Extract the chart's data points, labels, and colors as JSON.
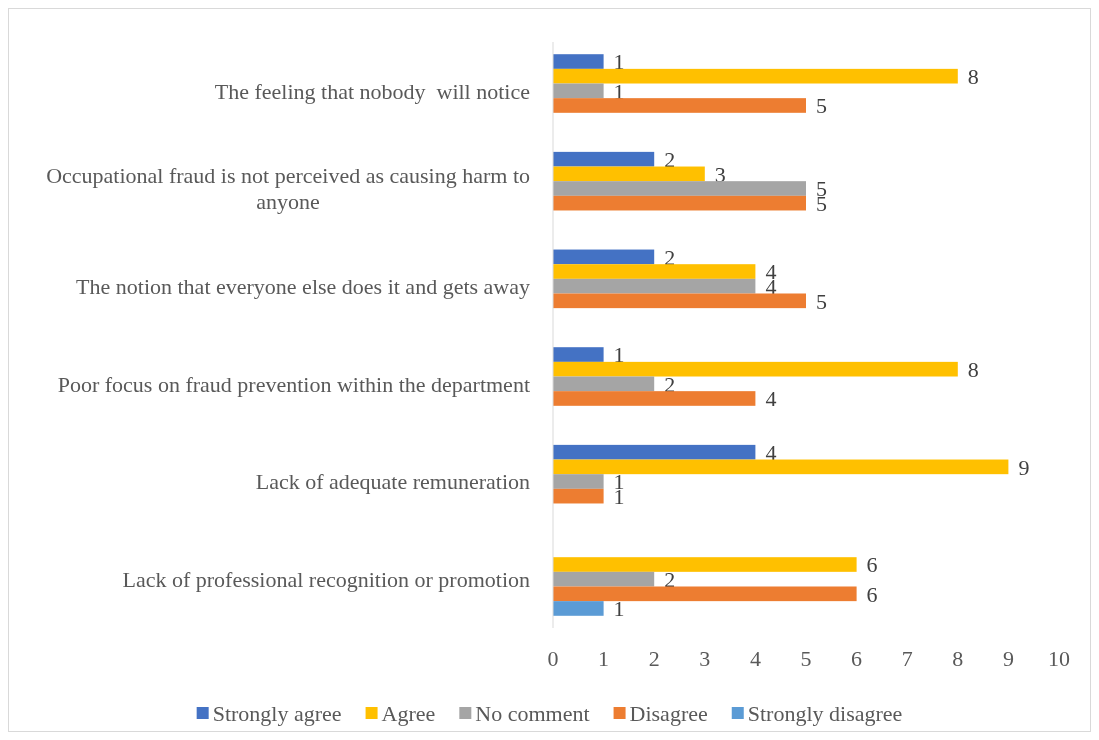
{
  "chart_data": {
    "type": "bar",
    "orientation": "horizontal",
    "categories": [
      "The feeling that nobody  will notice",
      "Occupational fraud is not perceived as causing harm to anyone",
      "The notion that everyone else does it and gets away",
      "Poor focus on fraud prevention within the department",
      "Lack of adequate remuneration",
      "Lack of professional recognition or promotion"
    ],
    "series": [
      {
        "name": "Strongly agree",
        "color": "#4472c4",
        "values": [
          1,
          2,
          2,
          1,
          4,
          null
        ]
      },
      {
        "name": "Agree",
        "color": "#ffc000",
        "values": [
          8,
          3,
          4,
          8,
          9,
          6
        ]
      },
      {
        "name": "No comment",
        "color": "#a5a5a5",
        "values": [
          1,
          5,
          4,
          2,
          1,
          2
        ]
      },
      {
        "name": "Disagree",
        "color": "#ed7d31",
        "values": [
          5,
          5,
          5,
          4,
          1,
          6
        ]
      },
      {
        "name": "Strongly disagree",
        "color": "#5b9bd5",
        "values": [
          null,
          null,
          null,
          null,
          null,
          1
        ]
      }
    ],
    "xlim": [
      0,
      10
    ],
    "xticks": [
      0,
      1,
      2,
      3,
      4,
      5,
      6,
      7,
      8,
      9,
      10
    ],
    "data_labels": true,
    "grid": false,
    "legend": "bottom"
  }
}
